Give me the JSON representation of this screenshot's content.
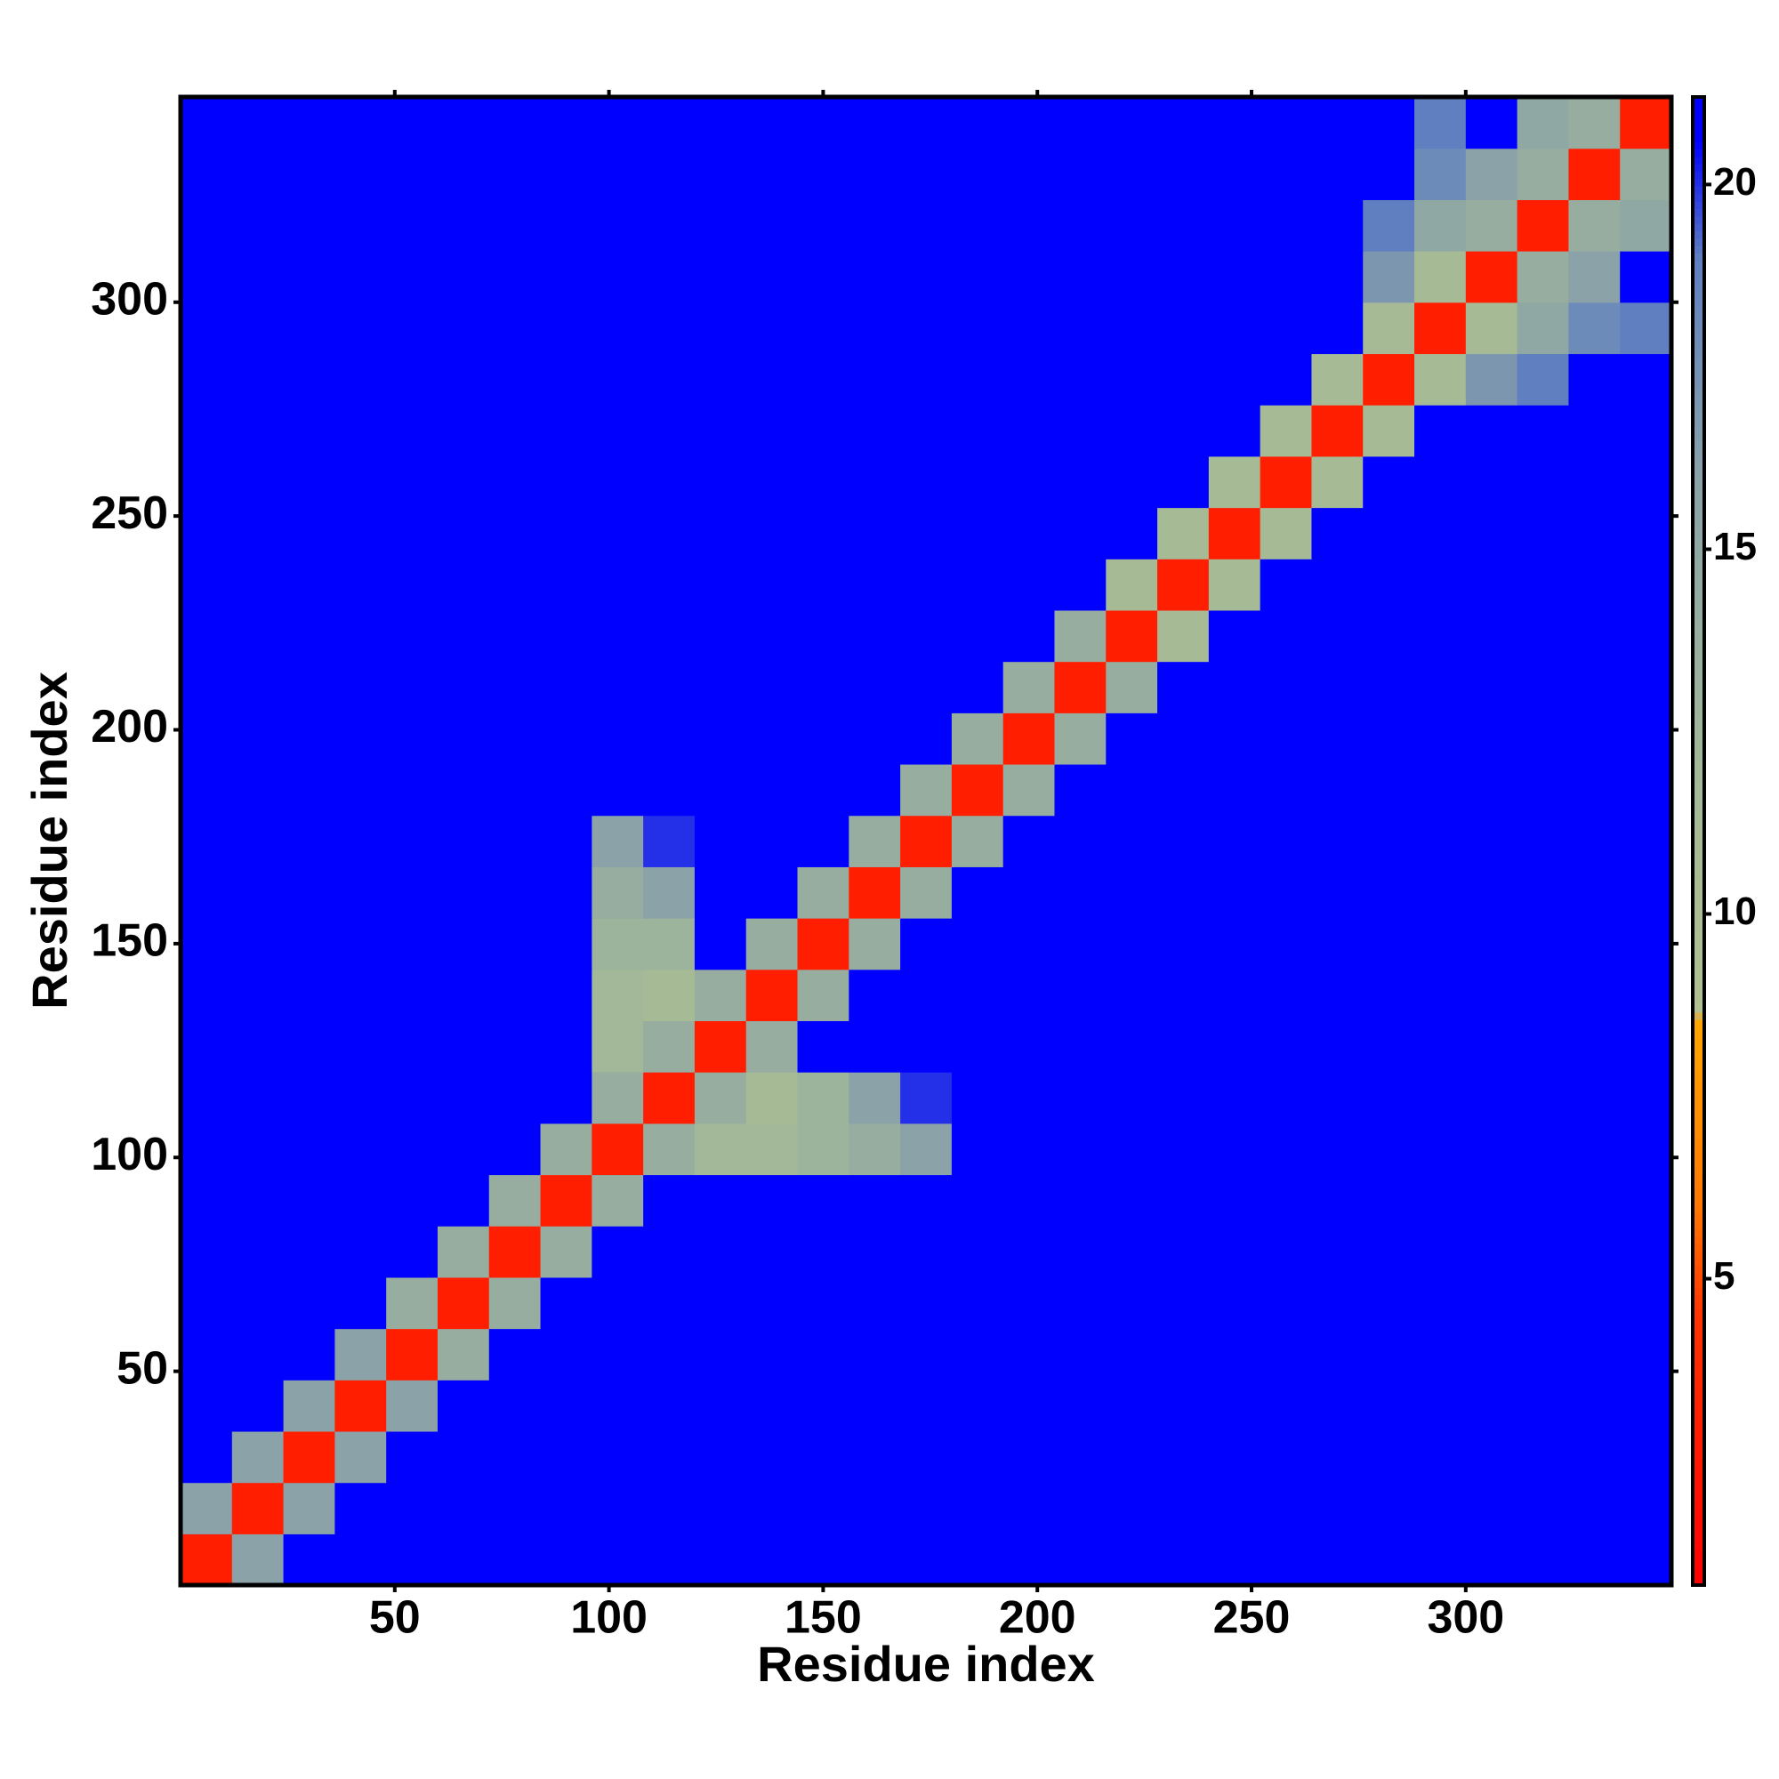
{
  "chart_data": {
    "type": "heatmap",
    "xlabel": "Residue index",
    "ylabel": "Residue index",
    "xbins": [
      0,
      12,
      24,
      36,
      48,
      60,
      72,
      84,
      96,
      108,
      120,
      132,
      144,
      156,
      168,
      180,
      192,
      204,
      216,
      228,
      240,
      252,
      264,
      276,
      288,
      300,
      312,
      324,
      336,
      348
    ],
    "ybins": [
      0,
      12,
      24,
      36,
      48,
      60,
      72,
      84,
      96,
      108,
      120,
      132,
      144,
      156,
      168,
      180,
      192,
      204,
      216,
      228,
      240,
      252,
      264,
      276,
      288,
      300,
      312,
      324,
      336,
      348
    ],
    "z": [
      [
        3,
        16,
        21,
        21,
        21,
        21,
        21,
        21,
        21,
        21,
        21,
        21,
        21,
        21,
        21,
        21,
        21,
        21,
        21,
        21,
        21,
        21,
        21,
        21,
        21,
        21,
        21,
        21,
        21
      ],
      [
        16,
        3,
        16,
        21,
        21,
        21,
        21,
        21,
        21,
        21,
        21,
        21,
        21,
        21,
        21,
        21,
        21,
        21,
        21,
        21,
        21,
        21,
        21,
        21,
        21,
        21,
        21,
        21,
        21
      ],
      [
        21,
        16,
        3,
        16,
        21,
        21,
        21,
        21,
        21,
        21,
        21,
        21,
        21,
        21,
        21,
        21,
        21,
        21,
        21,
        21,
        21,
        21,
        21,
        21,
        21,
        21,
        21,
        21,
        21
      ],
      [
        21,
        21,
        16,
        3,
        16,
        21,
        21,
        21,
        21,
        21,
        21,
        21,
        21,
        21,
        21,
        21,
        21,
        21,
        21,
        21,
        21,
        21,
        21,
        21,
        21,
        21,
        21,
        21,
        21
      ],
      [
        21,
        21,
        21,
        16,
        3,
        14,
        21,
        21,
        21,
        21,
        21,
        21,
        21,
        21,
        21,
        21,
        21,
        21,
        21,
        21,
        21,
        21,
        21,
        21,
        21,
        21,
        21,
        21,
        21
      ],
      [
        21,
        21,
        21,
        21,
        14,
        3,
        14,
        21,
        21,
        21,
        21,
        21,
        21,
        21,
        21,
        21,
        21,
        21,
        21,
        21,
        21,
        21,
        21,
        21,
        21,
        21,
        21,
        21,
        21
      ],
      [
        21,
        21,
        21,
        21,
        21,
        14,
        3,
        14,
        21,
        21,
        21,
        21,
        21,
        21,
        21,
        21,
        21,
        21,
        21,
        21,
        21,
        21,
        21,
        21,
        21,
        21,
        21,
        21,
        21
      ],
      [
        21,
        21,
        21,
        21,
        21,
        21,
        14,
        3,
        14,
        21,
        21,
        21,
        21,
        21,
        21,
        21,
        21,
        21,
        21,
        21,
        21,
        21,
        21,
        21,
        21,
        21,
        21,
        21,
        21
      ],
      [
        21,
        21,
        21,
        21,
        21,
        21,
        21,
        14,
        3,
        14,
        12,
        12,
        13,
        14,
        16,
        21,
        21,
        21,
        21,
        21,
        21,
        21,
        21,
        21,
        21,
        21,
        21,
        21,
        21
      ],
      [
        21,
        21,
        21,
        21,
        21,
        21,
        21,
        21,
        14,
        3,
        14,
        11,
        13,
        16,
        20,
        21,
        21,
        21,
        21,
        21,
        21,
        21,
        21,
        21,
        21,
        21,
        21,
        21,
        21
      ],
      [
        21,
        21,
        21,
        21,
        21,
        21,
        21,
        21,
        12,
        14,
        3,
        14,
        21,
        21,
        21,
        21,
        21,
        21,
        21,
        21,
        21,
        21,
        21,
        21,
        21,
        21,
        21,
        21,
        21
      ],
      [
        21,
        21,
        21,
        21,
        21,
        21,
        21,
        21,
        12,
        11,
        14,
        3,
        14,
        21,
        21,
        21,
        21,
        21,
        21,
        21,
        21,
        21,
        21,
        21,
        21,
        21,
        21,
        21,
        21
      ],
      [
        21,
        21,
        21,
        21,
        21,
        21,
        21,
        21,
        13,
        13,
        21,
        14,
        3,
        14,
        21,
        21,
        21,
        21,
        21,
        21,
        21,
        21,
        21,
        21,
        21,
        21,
        21,
        21,
        21
      ],
      [
        21,
        21,
        21,
        21,
        21,
        21,
        21,
        21,
        14,
        16,
        21,
        21,
        14,
        3,
        14,
        21,
        21,
        21,
        21,
        21,
        21,
        21,
        21,
        21,
        21,
        21,
        21,
        21,
        21
      ],
      [
        21,
        21,
        21,
        21,
        21,
        21,
        21,
        21,
        16,
        20,
        21,
        21,
        21,
        14,
        3,
        14,
        21,
        21,
        21,
        21,
        21,
        21,
        21,
        21,
        21,
        21,
        21,
        21,
        21
      ],
      [
        21,
        21,
        21,
        21,
        21,
        21,
        21,
        21,
        21,
        21,
        21,
        21,
        21,
        21,
        14,
        3,
        14,
        21,
        21,
        21,
        21,
        21,
        21,
        21,
        21,
        21,
        21,
        21,
        21
      ],
      [
        21,
        21,
        21,
        21,
        21,
        21,
        21,
        21,
        21,
        21,
        21,
        21,
        21,
        21,
        21,
        14,
        3,
        14,
        21,
        21,
        21,
        21,
        21,
        21,
        21,
        21,
        21,
        21,
        21
      ],
      [
        21,
        21,
        21,
        21,
        21,
        21,
        21,
        21,
        21,
        21,
        21,
        21,
        21,
        21,
        21,
        21,
        14,
        3,
        14,
        21,
        21,
        21,
        21,
        21,
        21,
        21,
        21,
        21,
        21
      ],
      [
        21,
        21,
        21,
        21,
        21,
        21,
        21,
        21,
        21,
        21,
        21,
        21,
        21,
        21,
        21,
        21,
        21,
        14,
        3,
        11,
        21,
        21,
        21,
        21,
        21,
        21,
        21,
        21,
        21
      ],
      [
        21,
        21,
        21,
        21,
        21,
        21,
        21,
        21,
        21,
        21,
        21,
        21,
        21,
        21,
        21,
        21,
        21,
        21,
        11,
        3,
        11,
        21,
        21,
        21,
        21,
        21,
        21,
        21,
        21
      ],
      [
        21,
        21,
        21,
        21,
        21,
        21,
        21,
        21,
        21,
        21,
        21,
        21,
        21,
        21,
        21,
        21,
        21,
        21,
        21,
        11,
        3,
        11,
        21,
        21,
        21,
        21,
        21,
        21,
        21
      ],
      [
        21,
        21,
        21,
        21,
        21,
        21,
        21,
        21,
        21,
        21,
        21,
        21,
        21,
        21,
        21,
        21,
        21,
        21,
        21,
        21,
        11,
        3,
        11,
        21,
        21,
        21,
        21,
        21,
        21
      ],
      [
        21,
        21,
        21,
        21,
        21,
        21,
        21,
        21,
        21,
        21,
        21,
        21,
        21,
        21,
        21,
        21,
        21,
        21,
        21,
        21,
        21,
        11,
        3,
        11,
        21,
        21,
        21,
        21,
        21
      ],
      [
        21,
        21,
        21,
        21,
        21,
        21,
        21,
        21,
        21,
        21,
        21,
        21,
        21,
        21,
        21,
        21,
        21,
        21,
        21,
        21,
        21,
        21,
        11,
        3,
        11,
        17,
        19,
        21,
        21
      ],
      [
        21,
        21,
        21,
        21,
        21,
        21,
        21,
        21,
        21,
        21,
        21,
        21,
        21,
        21,
        21,
        21,
        21,
        21,
        21,
        21,
        21,
        21,
        21,
        11,
        3,
        11,
        15,
        18,
        19
      ],
      [
        21,
        21,
        21,
        21,
        21,
        21,
        21,
        21,
        21,
        21,
        21,
        21,
        21,
        21,
        21,
        21,
        21,
        21,
        21,
        21,
        21,
        21,
        21,
        17,
        11,
        3,
        14,
        16,
        21
      ],
      [
        21,
        21,
        21,
        21,
        21,
        21,
        21,
        21,
        21,
        21,
        21,
        21,
        21,
        21,
        21,
        21,
        21,
        21,
        21,
        21,
        21,
        21,
        21,
        19,
        15,
        14,
        3,
        14,
        15
      ],
      [
        21,
        21,
        21,
        21,
        21,
        21,
        21,
        21,
        21,
        21,
        21,
        21,
        21,
        21,
        21,
        21,
        21,
        21,
        21,
        21,
        21,
        21,
        21,
        21,
        18,
        16,
        14,
        3,
        14
      ],
      [
        21,
        21,
        21,
        21,
        21,
        21,
        21,
        21,
        21,
        21,
        21,
        21,
        21,
        21,
        21,
        21,
        21,
        21,
        21,
        21,
        21,
        21,
        21,
        21,
        19,
        21,
        15,
        14,
        3
      ]
    ],
    "xlim": [
      0,
      348
    ],
    "ylim": [
      0,
      348
    ],
    "xticks": [
      50,
      100,
      150,
      200,
      250,
      300
    ],
    "yticks": [
      50,
      100,
      150,
      200,
      250,
      300
    ],
    "zlim": [
      0.8,
      21.2
    ],
    "zticks": [
      5,
      10,
      15,
      20
    ],
    "colorscale": [
      [
        0.8,
        "#ff0000"
      ],
      [
        4.5,
        "#ff3300"
      ],
      [
        6,
        "#ff7700"
      ],
      [
        8.5,
        "#ffa500"
      ],
      [
        8.7,
        "#b0c090"
      ],
      [
        12,
        "#a2b898"
      ],
      [
        16,
        "#8aa2a8"
      ],
      [
        19,
        "#5f7fc0"
      ],
      [
        20.6,
        "#0000ff"
      ],
      [
        21.2,
        "#0000ff"
      ]
    ]
  }
}
